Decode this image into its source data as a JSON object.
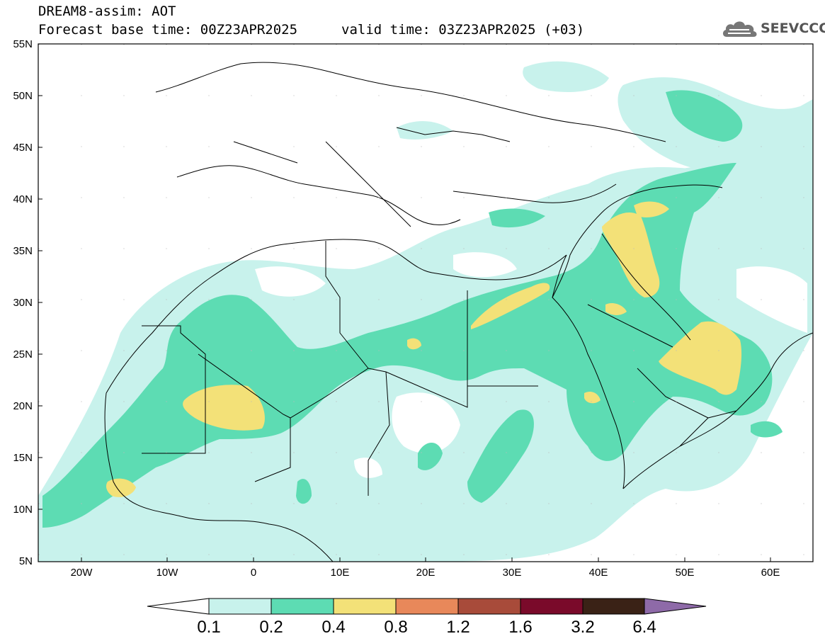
{
  "header": {
    "line1": "DREAM8-assim: AOT",
    "base_time": "Forecast base time: 00Z23APR2025",
    "valid_time": "valid time: 03Z23APR2025 (+03)",
    "logo_text": "SEEVCCC"
  },
  "map": {
    "lat_labels": [
      "55N",
      "50N",
      "45N",
      "40N",
      "35N",
      "30N",
      "25N",
      "20N",
      "15N",
      "10N",
      "5N"
    ],
    "lon_labels": [
      "20W",
      "10W",
      "0",
      "10E",
      "20E",
      "30E",
      "40E",
      "50E",
      "60E"
    ],
    "extent": {
      "lon": [
        -25,
        65
      ],
      "lat": [
        5,
        55
      ]
    },
    "field": "aerosol optical thickness"
  },
  "colorbar": {
    "labels": [
      "0.1",
      "0.2",
      "0.4",
      "0.8",
      "1.2",
      "1.6",
      "3.2",
      "6.4"
    ],
    "colors": [
      "#ffffff",
      "#c8f2ec",
      "#5ddcb3",
      "#f3e178",
      "#e8885a",
      "#a84b3a",
      "#7a0a2a",
      "#3a2216",
      "#8e6aa8"
    ]
  }
}
